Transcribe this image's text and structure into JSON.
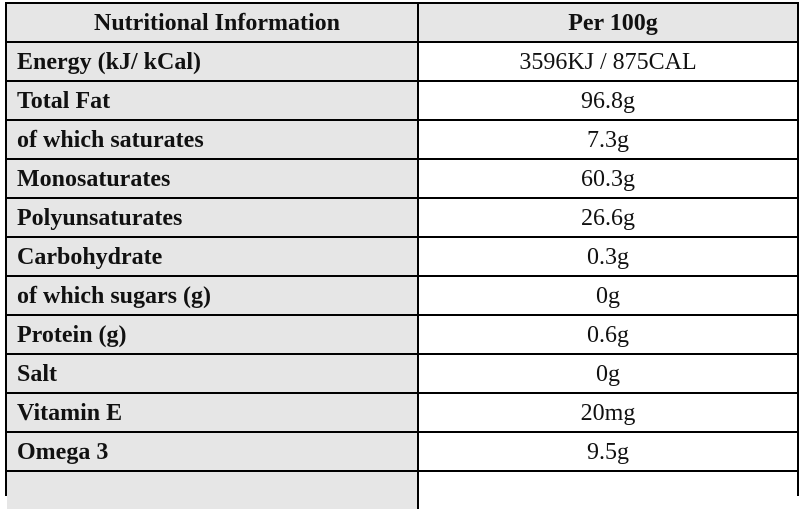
{
  "table": {
    "header": {
      "label": "Nutritional Information",
      "value": "Per 100g"
    },
    "rows": [
      {
        "label": "Energy (kJ/ kCal)",
        "value": "3596KJ / 875CAL"
      },
      {
        "label": "Total Fat",
        "value": "96.8g"
      },
      {
        "label": "of which saturates",
        "value": "7.3g"
      },
      {
        "label": "Monosaturates",
        "value": "60.3g"
      },
      {
        "label": "Polyunsaturates",
        "value": "26.6g"
      },
      {
        "label": "Carbohydrate",
        "value": "0.3g"
      },
      {
        "label": "of which sugars (g)",
        "value": "0g"
      },
      {
        "label": "Protein (g)",
        "value": "0.6g"
      },
      {
        "label": "Salt",
        "value": "0g"
      },
      {
        "label": "Vitamin E",
        "value": "20mg"
      },
      {
        "label": "Omega 3",
        "value": "9.5g"
      },
      {
        "label": "",
        "value": ""
      }
    ]
  },
  "colors": {
    "label_background": "#e6e6e6",
    "value_background": "#ffffff",
    "border": "#000000"
  }
}
